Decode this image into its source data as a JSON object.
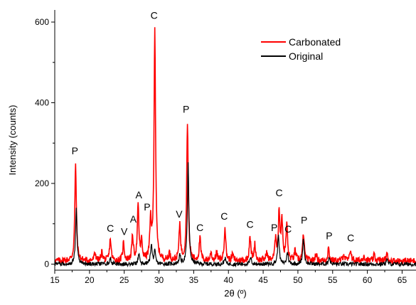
{
  "chart_data": {
    "type": "line",
    "title": "",
    "xlabel": "2θ (º)",
    "ylabel": "Intensity (counts)",
    "xlim": [
      15,
      67
    ],
    "ylim": [
      -15,
      630
    ],
    "xticks": [
      15,
      20,
      25,
      30,
      35,
      40,
      45,
      50,
      55,
      60,
      65
    ],
    "yticks": [
      0,
      200,
      400,
      600
    ],
    "grid": false,
    "legend_position": "top-right",
    "series": [
      {
        "name": "Carbonated",
        "color": "#ff0000",
        "baseline": 8,
        "peaks": [
          [
            18.0,
            240
          ],
          [
            20.8,
            20
          ],
          [
            21.8,
            22
          ],
          [
            23.0,
            55
          ],
          [
            24.9,
            45
          ],
          [
            26.2,
            60
          ],
          [
            27.0,
            135
          ],
          [
            27.5,
            45
          ],
          [
            28.8,
            95
          ],
          [
            29.4,
            575
          ],
          [
            31.5,
            18
          ],
          [
            33.0,
            90
          ],
          [
            34.1,
            345
          ],
          [
            35.9,
            55
          ],
          [
            37.5,
            20
          ],
          [
            38.3,
            20
          ],
          [
            39.5,
            85
          ],
          [
            40.6,
            15
          ],
          [
            43.1,
            62
          ],
          [
            43.8,
            40
          ],
          [
            45.5,
            20
          ],
          [
            46.8,
            55
          ],
          [
            47.3,
            120
          ],
          [
            47.7,
            100
          ],
          [
            48.4,
            90
          ],
          [
            49.6,
            25
          ],
          [
            50.8,
            68
          ],
          [
            52.6,
            18
          ],
          [
            54.4,
            32
          ],
          [
            56.6,
            18
          ],
          [
            57.6,
            28
          ],
          [
            59.5,
            15
          ],
          [
            61.0,
            15
          ],
          [
            62.8,
            18
          ]
        ]
      },
      {
        "name": "Original",
        "color": "#000000",
        "baseline": 0,
        "peaks": [
          [
            18.1,
            135
          ],
          [
            23.0,
            15
          ],
          [
            27.1,
            25
          ],
          [
            28.9,
            50
          ],
          [
            29.4,
            30
          ],
          [
            33.0,
            20
          ],
          [
            34.2,
            248
          ],
          [
            39.5,
            15
          ],
          [
            43.2,
            15
          ],
          [
            47.2,
            75
          ],
          [
            48.5,
            30
          ],
          [
            50.8,
            65
          ],
          [
            54.5,
            18
          ],
          [
            62.8,
            12
          ]
        ]
      }
    ],
    "annotations": [
      {
        "text": "P",
        "x": 17.9,
        "y": 272
      },
      {
        "text": "C",
        "x": 23.0,
        "y": 80
      },
      {
        "text": "V",
        "x": 25.0,
        "y": 72
      },
      {
        "text": "A",
        "x": 26.3,
        "y": 103
      },
      {
        "text": "A",
        "x": 27.1,
        "y": 163
      },
      {
        "text": "P",
        "x": 28.3,
        "y": 133
      },
      {
        "text": "C",
        "x": 29.3,
        "y": 608
      },
      {
        "text": "V",
        "x": 32.9,
        "y": 115
      },
      {
        "text": "P",
        "x": 33.9,
        "y": 375
      },
      {
        "text": "C",
        "x": 35.9,
        "y": 82
      },
      {
        "text": "C",
        "x": 39.4,
        "y": 110
      },
      {
        "text": "C",
        "x": 43.1,
        "y": 90
      },
      {
        "text": "P",
        "x": 46.6,
        "y": 82
      },
      {
        "text": "C",
        "x": 47.3,
        "y": 168
      },
      {
        "text": "C",
        "x": 48.6,
        "y": 78
      },
      {
        "text": "P",
        "x": 50.9,
        "y": 100
      },
      {
        "text": "P",
        "x": 54.5,
        "y": 62
      },
      {
        "text": "C",
        "x": 57.6,
        "y": 56
      }
    ]
  }
}
